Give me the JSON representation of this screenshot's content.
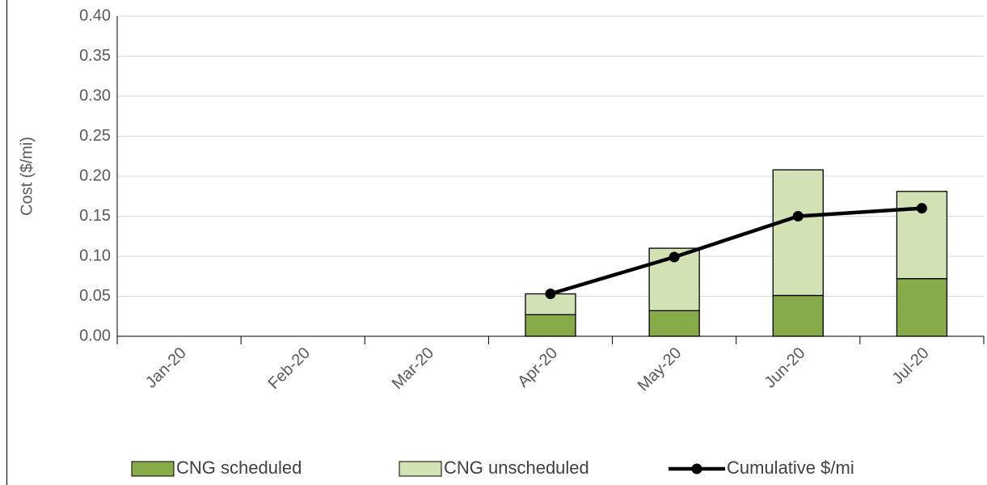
{
  "chart_data": {
    "type": "stacked-bar-line",
    "y_label": "Cost ($/mi)",
    "categories": [
      "Jan-20",
      "Feb-20",
      "Mar-20",
      "Apr-20",
      "May-20",
      "Jun-20",
      "Jul-20"
    ],
    "series": [
      {
        "name": "CNG scheduled",
        "type": "bar",
        "color": "#86ab48",
        "values": [
          null,
          null,
          null,
          0.027,
          0.032,
          0.051,
          0.072
        ]
      },
      {
        "name": "CNG unscheduled",
        "type": "bar",
        "color": "#d3e2b5",
        "values": [
          null,
          null,
          null,
          0.026,
          0.078,
          0.157,
          0.109
        ]
      },
      {
        "name": "Cumulative $/mi",
        "type": "line",
        "color": "#000000",
        "values": [
          null,
          null,
          null,
          0.053,
          0.099,
          0.15,
          0.16
        ]
      }
    ],
    "ylim": [
      0,
      0.4
    ],
    "yticks": [
      {
        "value": 0,
        "label": "0.00"
      },
      {
        "value": 0.05,
        "label": "0.05"
      },
      {
        "value": 0.1,
        "label": "0.10"
      },
      {
        "value": 0.15,
        "label": "0.15"
      },
      {
        "value": 0.2,
        "label": "0.20"
      },
      {
        "value": 0.25,
        "label": "0.25"
      },
      {
        "value": 0.3,
        "label": "0.30"
      },
      {
        "value": 0.35,
        "label": "0.35"
      },
      {
        "value": 0.4,
        "label": "0.40"
      }
    ],
    "grid": true,
    "legend": "bottom"
  }
}
